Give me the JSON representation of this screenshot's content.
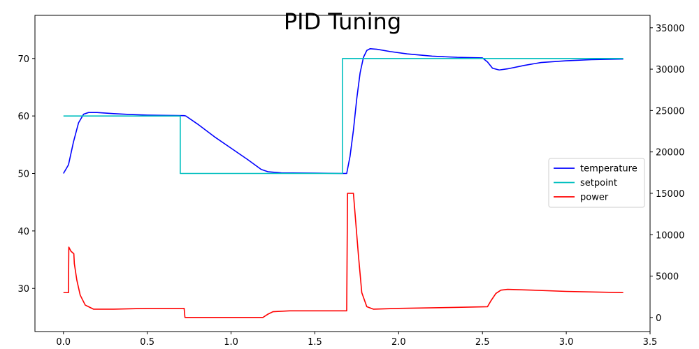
{
  "chart_data": {
    "type": "line",
    "title": "PID Tuning",
    "xlabel": "",
    "ylabel": "",
    "y2label": "",
    "xlim": [
      -0.17,
      3.5
    ],
    "ylim": [
      22.5,
      77.5
    ],
    "y2lim": [
      -1700,
      36500
    ],
    "x_ticks": [
      0.0,
      0.5,
      1.0,
      1.5,
      2.0,
      2.5,
      3.0,
      3.5
    ],
    "y_ticks": [
      30,
      40,
      50,
      60,
      70
    ],
    "y2_ticks": [
      0,
      5000,
      10000,
      15000,
      20000,
      25000,
      30000,
      35000
    ],
    "legend_position": "center-right",
    "grid": false,
    "series": [
      {
        "name": "temperature",
        "axis": "left",
        "color": "#0000ff",
        "points": [
          [
            0.0,
            50.0
          ],
          [
            0.03,
            51.5
          ],
          [
            0.06,
            55.5
          ],
          [
            0.09,
            58.8
          ],
          [
            0.12,
            60.3
          ],
          [
            0.15,
            60.6
          ],
          [
            0.2,
            60.6
          ],
          [
            0.3,
            60.4
          ],
          [
            0.4,
            60.25
          ],
          [
            0.5,
            60.15
          ],
          [
            0.6,
            60.1
          ],
          [
            0.72,
            60.05
          ],
          [
            0.73,
            60.0
          ],
          [
            0.8,
            58.6
          ],
          [
            0.9,
            56.4
          ],
          [
            1.0,
            54.4
          ],
          [
            1.1,
            52.4
          ],
          [
            1.18,
            50.7
          ],
          [
            1.22,
            50.3
          ],
          [
            1.3,
            50.1
          ],
          [
            1.5,
            50.05
          ],
          [
            1.66,
            50.0
          ],
          [
            1.69,
            50.0
          ],
          [
            1.71,
            53.0
          ],
          [
            1.73,
            57.5
          ],
          [
            1.75,
            63.0
          ],
          [
            1.77,
            67.5
          ],
          [
            1.79,
            70.2
          ],
          [
            1.81,
            71.4
          ],
          [
            1.83,
            71.7
          ],
          [
            1.87,
            71.6
          ],
          [
            1.95,
            71.2
          ],
          [
            2.05,
            70.8
          ],
          [
            2.2,
            70.4
          ],
          [
            2.35,
            70.2
          ],
          [
            2.5,
            70.1
          ],
          [
            2.53,
            69.4
          ],
          [
            2.56,
            68.3
          ],
          [
            2.6,
            68.0
          ],
          [
            2.65,
            68.2
          ],
          [
            2.75,
            68.8
          ],
          [
            2.85,
            69.3
          ],
          [
            3.0,
            69.6
          ],
          [
            3.15,
            69.8
          ],
          [
            3.34,
            69.9
          ]
        ]
      },
      {
        "name": "setpoint",
        "axis": "left",
        "color": "#00bfbf",
        "points": [
          [
            0.0,
            60.0
          ],
          [
            0.697,
            60.0
          ],
          [
            0.697,
            50.0
          ],
          [
            1.665,
            50.0
          ],
          [
            1.665,
            70.0
          ],
          [
            3.34,
            70.0
          ]
        ]
      },
      {
        "name": "power",
        "axis": "right",
        "color": "#ff0000",
        "points": [
          [
            0.0,
            3000
          ],
          [
            0.03,
            3000
          ],
          [
            0.032,
            8500
          ],
          [
            0.045,
            8000
          ],
          [
            0.062,
            7700
          ],
          [
            0.065,
            6500
          ],
          [
            0.08,
            4500
          ],
          [
            0.1,
            2700
          ],
          [
            0.13,
            1500
          ],
          [
            0.18,
            1000
          ],
          [
            0.3,
            1000
          ],
          [
            0.5,
            1100
          ],
          [
            0.72,
            1100
          ],
          [
            0.725,
            0
          ],
          [
            1.19,
            0
          ],
          [
            1.22,
            400
          ],
          [
            1.25,
            700
          ],
          [
            1.35,
            800
          ],
          [
            1.69,
            800
          ],
          [
            1.695,
            15000
          ],
          [
            1.73,
            15000
          ],
          [
            1.74,
            12500
          ],
          [
            1.76,
            7500
          ],
          [
            1.78,
            3000
          ],
          [
            1.81,
            1300
          ],
          [
            1.85,
            1000
          ],
          [
            2.0,
            1100
          ],
          [
            2.3,
            1200
          ],
          [
            2.53,
            1300
          ],
          [
            2.55,
            2000
          ],
          [
            2.58,
            2900
          ],
          [
            2.61,
            3300
          ],
          [
            2.65,
            3400
          ],
          [
            2.8,
            3300
          ],
          [
            3.0,
            3150
          ],
          [
            3.34,
            3000
          ]
        ]
      }
    ]
  }
}
